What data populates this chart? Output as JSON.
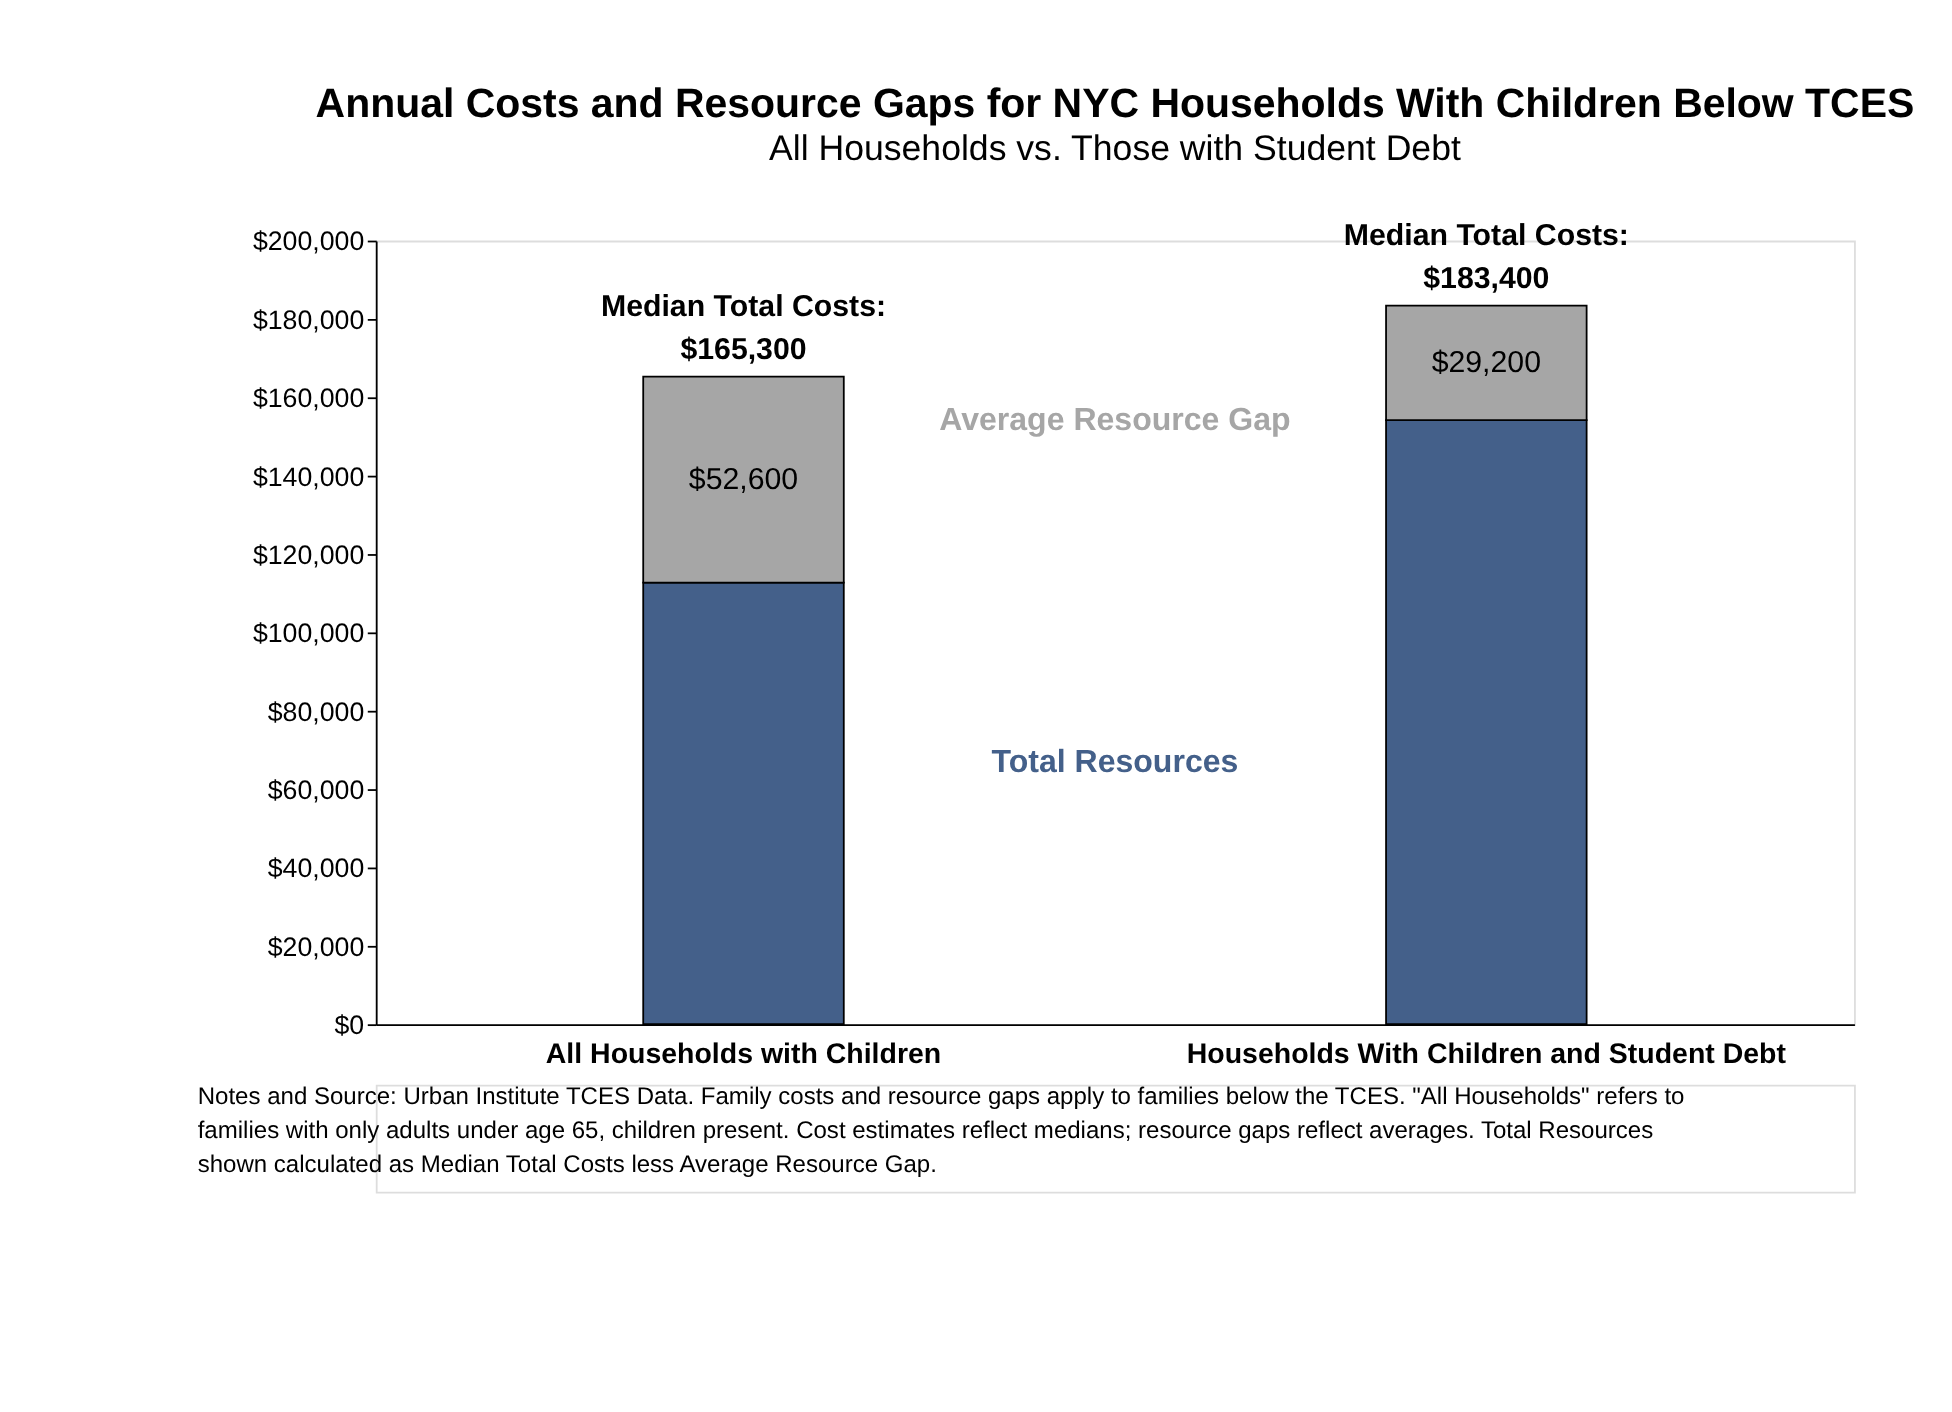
{
  "chart_data": {
    "type": "bar",
    "title": "Annual Costs and Resource Gaps for NYC Households With Children Below TCES",
    "subtitle": "All Households vs. Those with Student Debt",
    "categories": [
      "All Households with Children",
      "Households With Children and Student Debt"
    ],
    "stacked": true,
    "series": [
      {
        "name": "Total Resources",
        "color": "#44608a",
        "values": [
          112700,
          154200
        ]
      },
      {
        "name": "Average Resource Gap",
        "color": "#a6a6a6",
        "values": [
          52600,
          29200
        ],
        "value_labels": [
          "$52,600",
          "$29,200"
        ]
      }
    ],
    "totals": [
      "Median Total Costs: $165,300",
      "Median Total Costs: $183,400"
    ],
    "ylim": [
      0,
      200000
    ],
    "yticks": [
      {
        "value": 0,
        "label": "$0"
      },
      {
        "value": 20000,
        "label": "$20,000"
      },
      {
        "value": 40000,
        "label": "$40,000"
      },
      {
        "value": 60000,
        "label": "$60,000"
      },
      {
        "value": 80000,
        "label": "$80,000"
      },
      {
        "value": 100000,
        "label": "$100,000"
      },
      {
        "value": 120000,
        "label": "$120,000"
      },
      {
        "value": 140000,
        "label": "$140,000"
      },
      {
        "value": 160000,
        "label": "$160,000"
      },
      {
        "value": 180000,
        "label": "$180,000"
      },
      {
        "value": 200000,
        "label": "$200,000"
      }
    ],
    "grid": false,
    "legend": false,
    "annotations": [
      "Notes and Source: Urban Institute TCES Data. Family costs and resource gaps apply to families below the TCES. \"All Households\" refers to families with only adults under age 65, children present. Cost estimates reflect medians; resource gaps reflect averages. Total Resources shown calculated as Median Total Costs less Average Resource Gap."
    ]
  }
}
